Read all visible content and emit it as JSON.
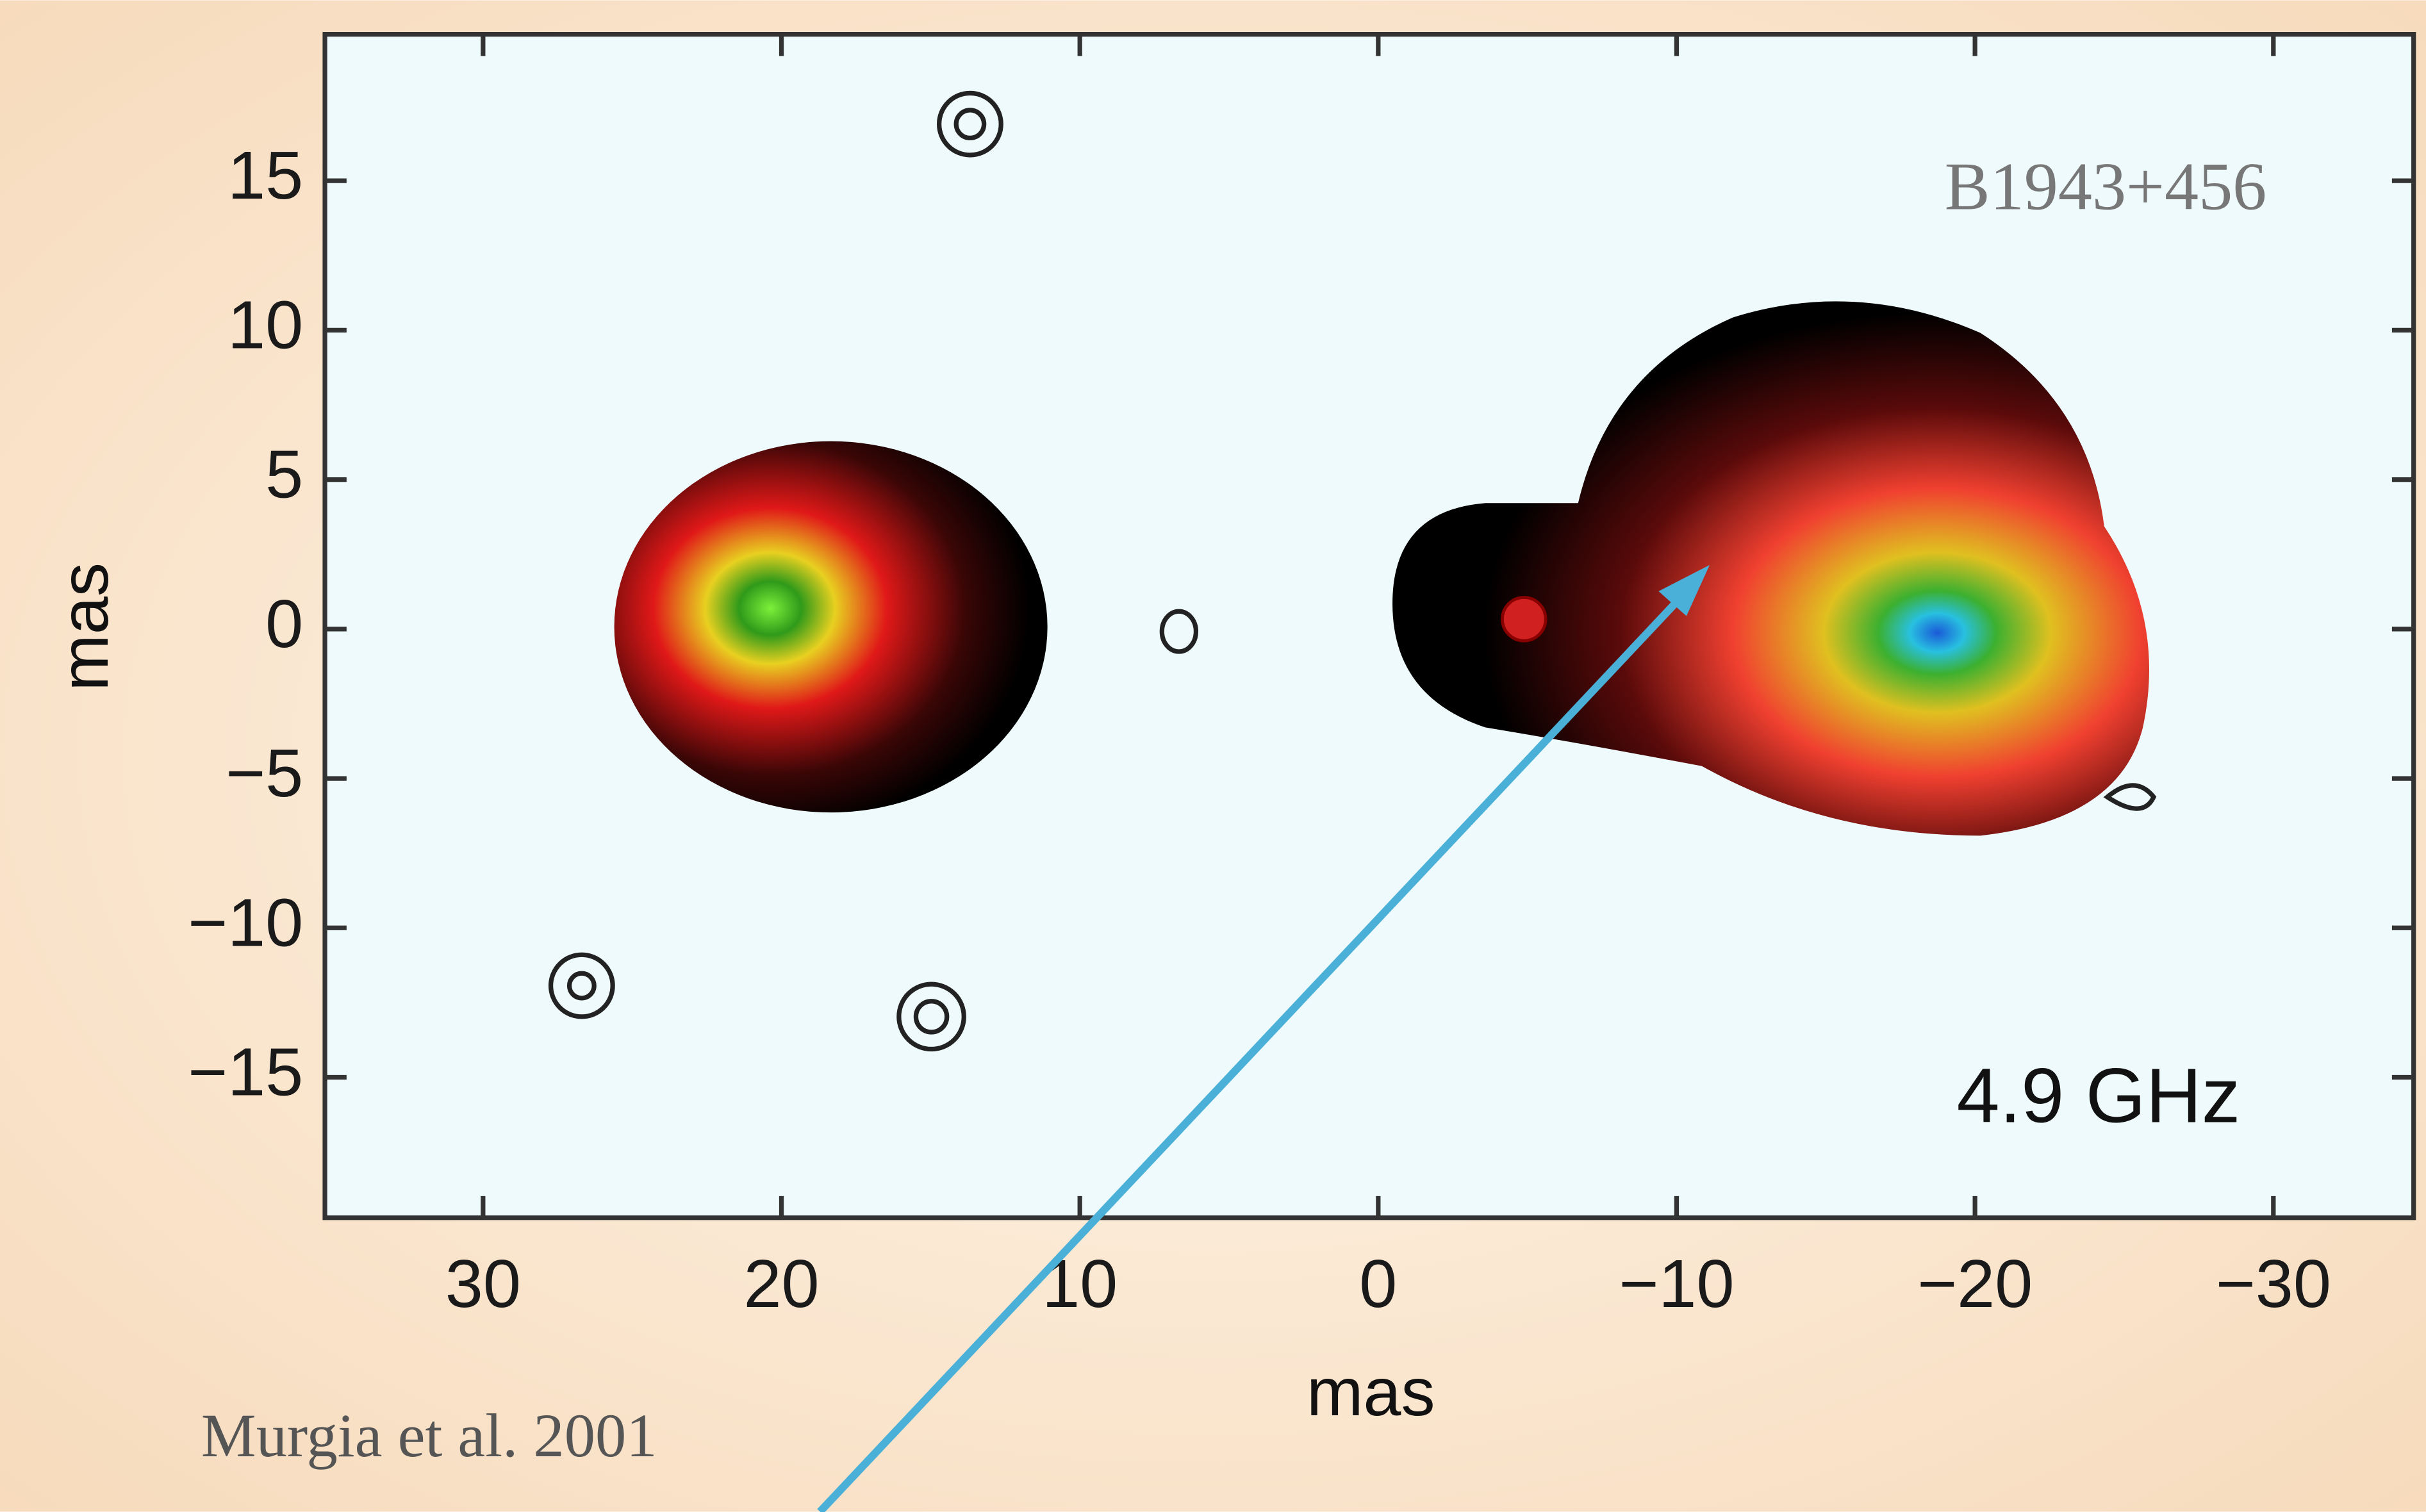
{
  "chart_data": {
    "type": "contour",
    "xlabel": "mas",
    "ylabel": "mas",
    "xlim": [
      35.3,
      -34.7
    ],
    "ylim": [
      -19.7,
      19.9
    ],
    "xticks": [
      30,
      20,
      10,
      0,
      {
        "value": -10,
        "label": "−10"
      },
      {
        "value": -20,
        "label": "−20"
      },
      {
        "value": -30,
        "label": "−30"
      }
    ],
    "yticks": [
      {
        "value": -15,
        "label": "−15"
      },
      {
        "value": -10,
        "label": "−10"
      },
      {
        "value": -5,
        "label": "−5"
      },
      0,
      5,
      10,
      15
    ],
    "annotations": [
      "B1943+456",
      "4.9 GHz"
    ],
    "source": "Murgia et al. 2001"
  }
}
